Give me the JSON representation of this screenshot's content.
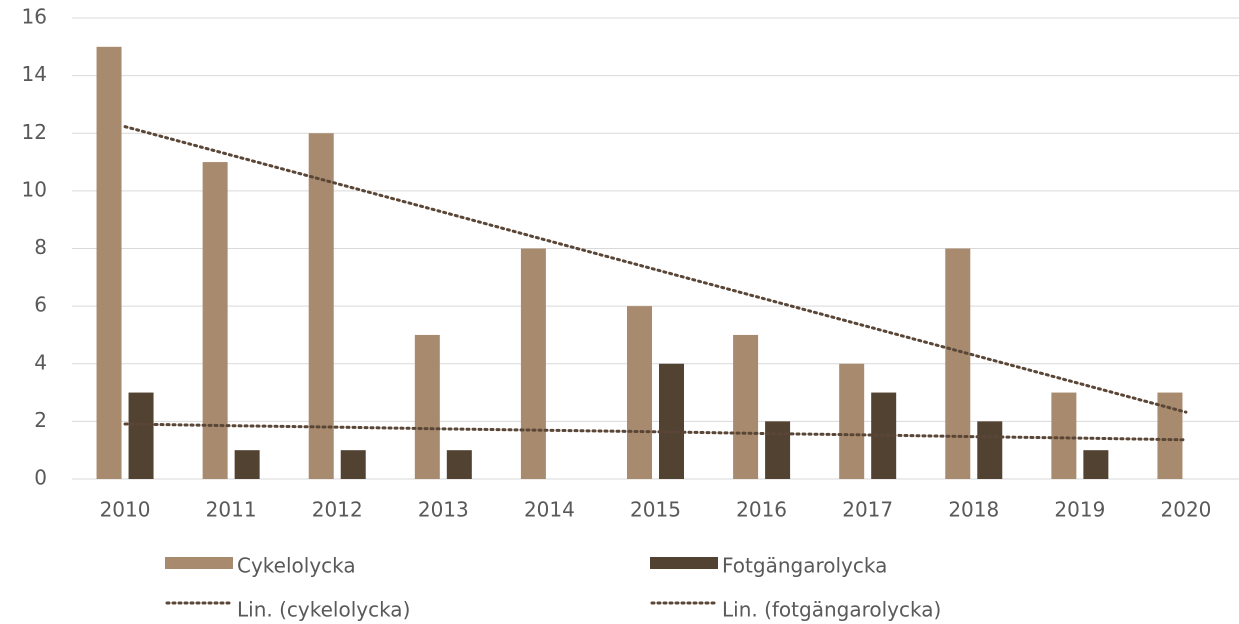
{
  "chart_data": {
    "type": "bar",
    "categories": [
      "2010",
      "2011",
      "2012",
      "2013",
      "2014",
      "2015",
      "2016",
      "2017",
      "2018",
      "2019",
      "2020"
    ],
    "series": [
      {
        "name": "Cykelolycka",
        "color": "#a88b6e",
        "values": [
          15,
          11,
          12,
          5,
          8,
          6,
          5,
          4,
          8,
          3,
          3
        ]
      },
      {
        "name": "Fotgängarolycka",
        "color": "#524232",
        "values": [
          3,
          1,
          1,
          1,
          0,
          4,
          2,
          3,
          2,
          1,
          0
        ]
      },
      {
        "name": "Lin. (cykelolycka)",
        "type": "line",
        "dashed": true,
        "color": "#5a4636",
        "values": [
          12.23,
          11.24,
          10.25,
          9.26,
          8.26,
          7.27,
          6.28,
          5.29,
          4.3,
          3.31,
          2.32
        ]
      },
      {
        "name": "Lin. (fotgängarolycka)",
        "type": "line",
        "dashed": true,
        "color": "#5a4636",
        "values": [
          1.91,
          1.85,
          1.8,
          1.74,
          1.69,
          1.64,
          1.58,
          1.53,
          1.47,
          1.42,
          1.36
        ]
      }
    ],
    "ylim": [
      0,
      16
    ],
    "yticks": [
      0,
      2,
      4,
      6,
      8,
      10,
      12,
      14,
      16
    ],
    "grid": true,
    "legend": "bottom"
  }
}
